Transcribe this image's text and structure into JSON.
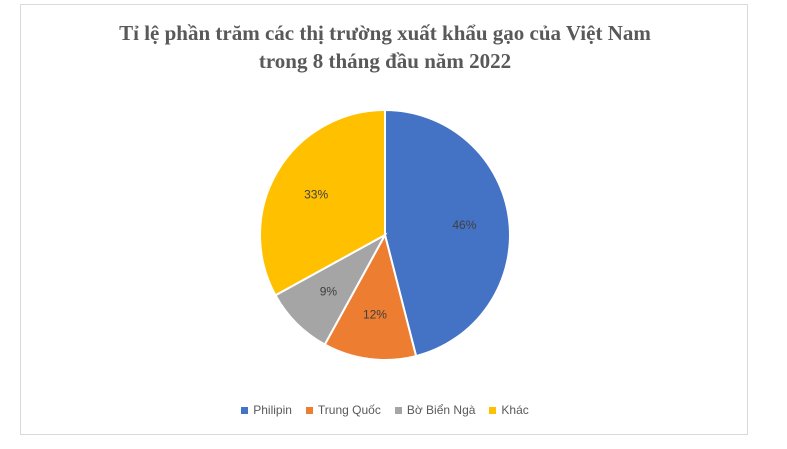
{
  "chart_data": {
    "type": "pie",
    "title_lines": [
      "Tỉ lệ phần trăm các thị trường xuất khẩu gạo của Việt Nam",
      "trong 8 tháng đầu năm 2022"
    ],
    "categories": [
      "Philipin",
      "Trung Quốc",
      "Bờ Biển Ngà",
      "Khác"
    ],
    "values": [
      46,
      12,
      9,
      33
    ],
    "labels": [
      "46%",
      "12%",
      "9%",
      "33%"
    ],
    "colors": [
      "#4472C4",
      "#ED7D31",
      "#A5A5A5",
      "#FFC000"
    ],
    "legend_position": "bottom"
  }
}
